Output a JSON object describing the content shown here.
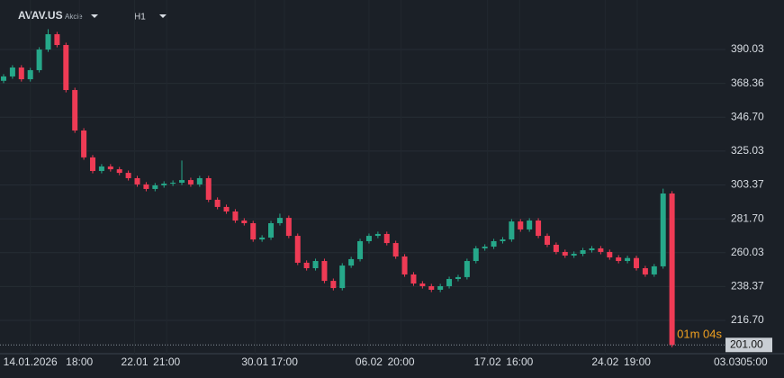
{
  "header": {
    "symbol": "AVAV.US",
    "asset_type": "Akcie",
    "timeframe": "H1"
  },
  "chart_data": {
    "type": "candlestick",
    "up_color": "#26a88a",
    "down_color": "#ef3b55",
    "open": [
      370.0,
      372.8,
      378.5,
      371.0,
      376.8,
      390.0,
      399.8,
      392.9,
      364.1,
      338.2,
      321.0,
      312.3,
      315.2,
      313.4,
      311.1,
      307.7,
      303.7,
      300.8,
      303.1,
      304.2,
      304.8,
      306.5,
      303.7,
      307.7,
      293.9,
      289.3,
      286.4,
      280.6,
      278.9,
      268.5,
      269.7,
      278.9,
      282.3,
      270.8,
      253.6,
      250.1,
      254.7,
      242.0,
      237.4,
      251.8,
      255.9,
      267.4,
      270.8,
      272.0,
      266.2,
      257.6,
      246.1,
      240.3,
      238.6,
      236.3,
      238.6,
      243.2,
      244.4,
      254.7,
      262.8,
      263.9,
      267.4,
      268.5,
      280.0,
      274.9,
      280.6,
      270.8,
      265.1,
      260.5,
      258.2,
      259.3,
      261.6,
      262.8,
      260.5,
      257.0,
      254.7,
      256.6,
      250.1,
      246.1,
      251.3,
      297.9
    ],
    "high": [
      374.3,
      380.0,
      380.0,
      378.3,
      391.5,
      403.0,
      401.3,
      394.4,
      365.6,
      339.7,
      322.5,
      316.7,
      316.7,
      314.9,
      312.6,
      309.2,
      305.2,
      304.6,
      305.7,
      306.3,
      319.0,
      308.0,
      309.2,
      309.2,
      295.4,
      290.8,
      287.9,
      282.1,
      280.4,
      271.2,
      280.4,
      285.0,
      283.8,
      272.3,
      255.1,
      256.2,
      256.2,
      243.5,
      253.3,
      257.4,
      268.9,
      272.3,
      273.5,
      273.5,
      267.7,
      259.1,
      247.6,
      241.8,
      240.1,
      240.1,
      244.7,
      245.9,
      256.2,
      264.3,
      265.4,
      268.9,
      270.0,
      281.5,
      281.5,
      282.1,
      282.1,
      272.3,
      266.6,
      262.0,
      260.8,
      263.1,
      264.3,
      264.3,
      262.0,
      258.5,
      258.1,
      258.1,
      251.6,
      252.8,
      301.0,
      299.4
    ],
    "low": [
      368.5,
      371.3,
      369.5,
      369.5,
      375.3,
      388.5,
      391.4,
      362.6,
      336.7,
      319.5,
      310.8,
      310.8,
      311.9,
      309.6,
      306.2,
      302.2,
      299.3,
      299.3,
      301.6,
      302.7,
      303.3,
      302.2,
      302.2,
      292.4,
      287.8,
      284.9,
      279.1,
      277.4,
      267.0,
      267.0,
      268.2,
      277.4,
      269.3,
      252.1,
      248.6,
      248.6,
      240.5,
      235.9,
      235.9,
      250.3,
      254.4,
      265.9,
      269.3,
      264.7,
      256.1,
      244.6,
      238.8,
      237.1,
      234.8,
      234.8,
      237.1,
      241.7,
      242.9,
      253.2,
      261.3,
      262.4,
      265.9,
      267.0,
      273.4,
      273.4,
      269.3,
      263.6,
      259.0,
      256.7,
      256.7,
      257.8,
      260.1,
      259.0,
      255.5,
      253.2,
      253.2,
      248.6,
      244.6,
      244.6,
      249.8,
      199.5
    ],
    "close": [
      372.8,
      378.5,
      371.0,
      376.8,
      390.0,
      399.8,
      392.9,
      364.1,
      338.2,
      321.0,
      312.3,
      315.2,
      313.4,
      311.1,
      307.7,
      303.7,
      300.8,
      303.1,
      304.2,
      304.8,
      306.5,
      303.7,
      307.7,
      293.9,
      289.3,
      286.4,
      280.6,
      278.9,
      268.5,
      269.7,
      278.9,
      282.3,
      270.8,
      253.6,
      250.1,
      254.7,
      242.0,
      237.4,
      251.8,
      255.9,
      267.4,
      270.8,
      272.0,
      266.2,
      257.6,
      246.1,
      240.3,
      238.6,
      236.3,
      238.6,
      243.2,
      244.4,
      254.7,
      262.8,
      263.9,
      267.4,
      268.5,
      280.0,
      274.9,
      280.6,
      270.8,
      265.1,
      260.5,
      258.2,
      259.3,
      261.6,
      262.8,
      260.5,
      257.0,
      254.7,
      256.6,
      250.1,
      246.1,
      251.3,
      297.9,
      201.0
    ],
    "xlim": [
      0,
      81
    ],
    "xticks": [
      {
        "value": 3,
        "label": "14.01.2026"
      },
      {
        "value": 8.5,
        "label": "18:00"
      },
      {
        "value": 14.7,
        "label": "22.01"
      },
      {
        "value": 18.3,
        "label": "21:00"
      },
      {
        "value": 28.2,
        "label": "30.01"
      },
      {
        "value": 31.5,
        "label": "17:00"
      },
      {
        "value": 41,
        "label": "06.02"
      },
      {
        "value": 44.6,
        "label": "20:00"
      },
      {
        "value": 54.3,
        "label": "17.02"
      },
      {
        "value": 57.9,
        "label": "16:00"
      },
      {
        "value": 67.5,
        "label": "24.02"
      },
      {
        "value": 71.1,
        "label": "19:00"
      },
      {
        "value": 81.2,
        "label": "03.03"
      },
      {
        "value": 84.2,
        "label": "05:00"
      }
    ],
    "ylim": [
      195.4,
      421.7
    ],
    "yticks": [
      390.03,
      368.36,
      {
        "value": 346.7,
        "label": "346.70"
      },
      325.03,
      303.37,
      {
        "value": 281.7,
        "label": "281.70"
      },
      260.03,
      238.37,
      {
        "value": 216.7,
        "label": "216.70"
      }
    ],
    "grid": true,
    "last_price": {
      "value": 201,
      "label": "201.00"
    },
    "countdown": "01m 04s"
  }
}
